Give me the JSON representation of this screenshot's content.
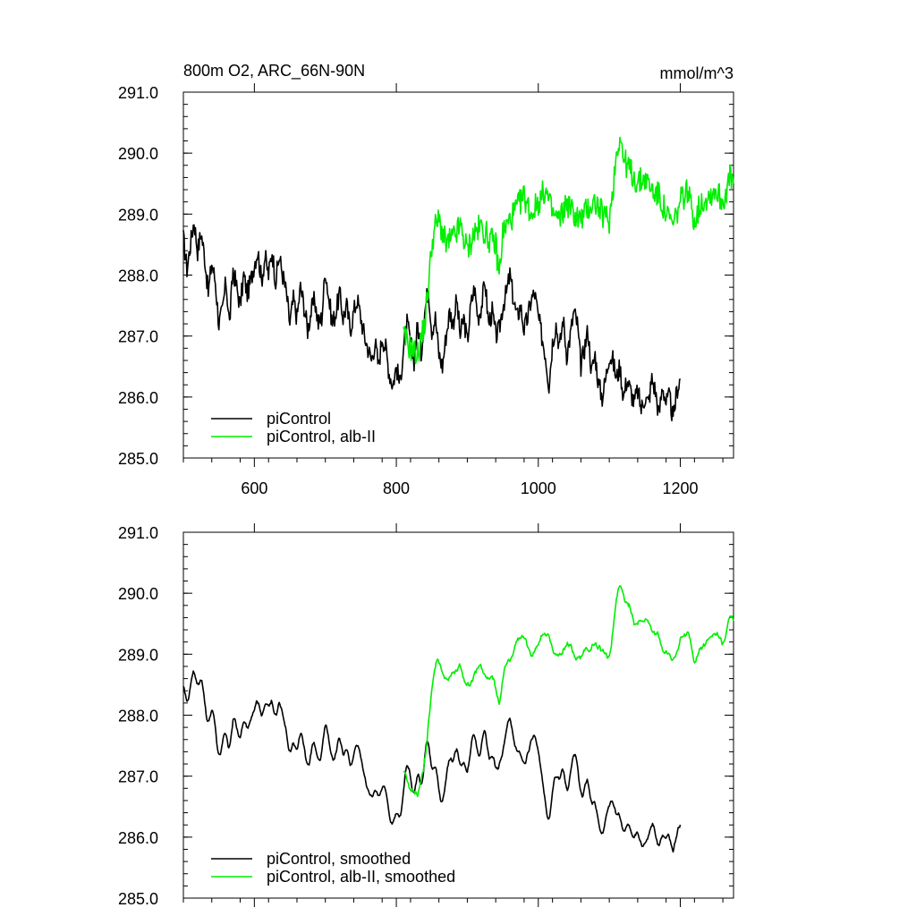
{
  "colors": {
    "black": "#000000",
    "green": "#00ee00"
  },
  "chart_data": [
    {
      "type": "line",
      "title": "800m O2, ARC_66N-90N",
      "units": "mmol/m^3",
      "xlim": [
        500,
        1275
      ],
      "ylim": [
        285.0,
        291.0
      ],
      "xticks": [
        "600",
        "800",
        "1000",
        "1200"
      ],
      "xtick_values": [
        600,
        800,
        1000,
        1200
      ],
      "yticks": [
        "285.0",
        "286.0",
        "287.0",
        "288.0",
        "289.0",
        "290.0",
        "291.0"
      ],
      "ytick_values": [
        285,
        286,
        287,
        288,
        289,
        290,
        291
      ],
      "grid": false,
      "legend_position": "bottom-left",
      "series": [
        {
          "name": "piControl",
          "color": "#000000",
          "x": [
            500,
            505,
            510,
            515,
            520,
            525,
            530,
            535,
            540,
            545,
            550,
            555,
            560,
            565,
            570,
            575,
            580,
            585,
            590,
            595,
            600,
            605,
            610,
            615,
            620,
            625,
            630,
            635,
            640,
            645,
            650,
            655,
            660,
            665,
            670,
            675,
            680,
            685,
            690,
            695,
            700,
            705,
            710,
            715,
            720,
            725,
            730,
            735,
            740,
            745,
            750,
            755,
            760,
            765,
            770,
            775,
            780,
            785,
            790,
            795,
            800,
            805,
            810,
            815,
            820,
            825,
            830,
            835,
            840,
            845,
            850,
            855,
            860,
            865,
            870,
            875,
            880,
            885,
            890,
            895,
            900,
            905,
            910,
            915,
            920,
            925,
            930,
            935,
            940,
            945,
            950,
            955,
            960,
            965,
            970,
            975,
            980,
            985,
            990,
            995,
            1000,
            1005,
            1010,
            1015,
            1020,
            1025,
            1030,
            1035,
            1040,
            1045,
            1050,
            1055,
            1060,
            1065,
            1070,
            1075,
            1080,
            1085,
            1090,
            1095,
            1100,
            1105,
            1110,
            1115,
            1120,
            1125,
            1130,
            1135,
            1140,
            1145,
            1150,
            1155,
            1160,
            1165,
            1170,
            1175,
            1180,
            1185,
            1190,
            1195,
            1200
          ],
          "y": [
            288.6,
            288.1,
            288.5,
            288.9,
            288.4,
            288.7,
            288.3,
            287.7,
            288.2,
            287.9,
            287.2,
            287.4,
            287.9,
            287.2,
            288.1,
            287.8,
            287.5,
            288.0,
            287.7,
            287.9,
            288.2,
            288.4,
            287.9,
            288.3,
            288.0,
            288.4,
            287.9,
            288.3,
            288.0,
            287.7,
            287.2,
            287.6,
            287.3,
            287.8,
            287.5,
            287.1,
            287.4,
            287.6,
            287.2,
            287.3,
            288.1,
            287.6,
            287.2,
            287.4,
            287.7,
            287.3,
            287.5,
            287.1,
            287.4,
            287.6,
            287.3,
            287.0,
            286.8,
            286.6,
            286.9,
            286.5,
            287.0,
            286.8,
            286.4,
            286.2,
            286.5,
            286.2,
            286.8,
            287.2,
            286.9,
            286.6,
            287.2,
            286.7,
            287.4,
            287.8,
            287.1,
            287.3,
            286.7,
            286.5,
            287.0,
            287.4,
            287.2,
            287.6,
            287.0,
            287.3,
            286.9,
            287.5,
            287.8,
            287.3,
            287.5,
            287.9,
            287.2,
            287.4,
            287.0,
            287.1,
            287.5,
            287.7,
            288.0,
            287.6,
            287.3,
            287.5,
            287.1,
            287.3,
            287.6,
            287.7,
            287.3,
            287.0,
            286.7,
            286.2,
            286.9,
            287.2,
            286.8,
            287.3,
            286.7,
            287.0,
            287.4,
            287.2,
            286.5,
            286.8,
            287.1,
            286.4,
            286.7,
            286.2,
            286.0,
            286.3,
            286.7,
            286.6,
            286.3,
            286.5,
            286.0,
            286.3,
            286.1,
            285.9,
            286.1,
            285.8,
            286.0,
            285.9,
            286.3,
            286.1,
            285.7,
            286.2,
            285.9,
            286.0,
            285.6,
            286.1,
            286.3
          ],
          "x_extra": [],
          "y_extra": []
        },
        {
          "name": "piControl, alb-II",
          "color": "#00ee00",
          "x": [],
          "y": []
        }
      ]
    },
    {
      "type": "line",
      "xlim": [
        500,
        1275
      ],
      "ylim": [
        285.0,
        291.0
      ],
      "yticks": [
        "285.0",
        "286.0",
        "287.0",
        "288.0",
        "289.0",
        "290.0",
        "291.0"
      ],
      "ytick_values": [
        285,
        286,
        287,
        288,
        289,
        290,
        291
      ],
      "grid": false,
      "legend_position": "bottom-left",
      "series": [
        {
          "name": "piControl, smoothed",
          "color": "#000000",
          "x": [],
          "y": []
        },
        {
          "name": "piControl, alb-II, smoothed",
          "color": "#00ee00",
          "x": [],
          "y": []
        }
      ]
    }
  ]
}
